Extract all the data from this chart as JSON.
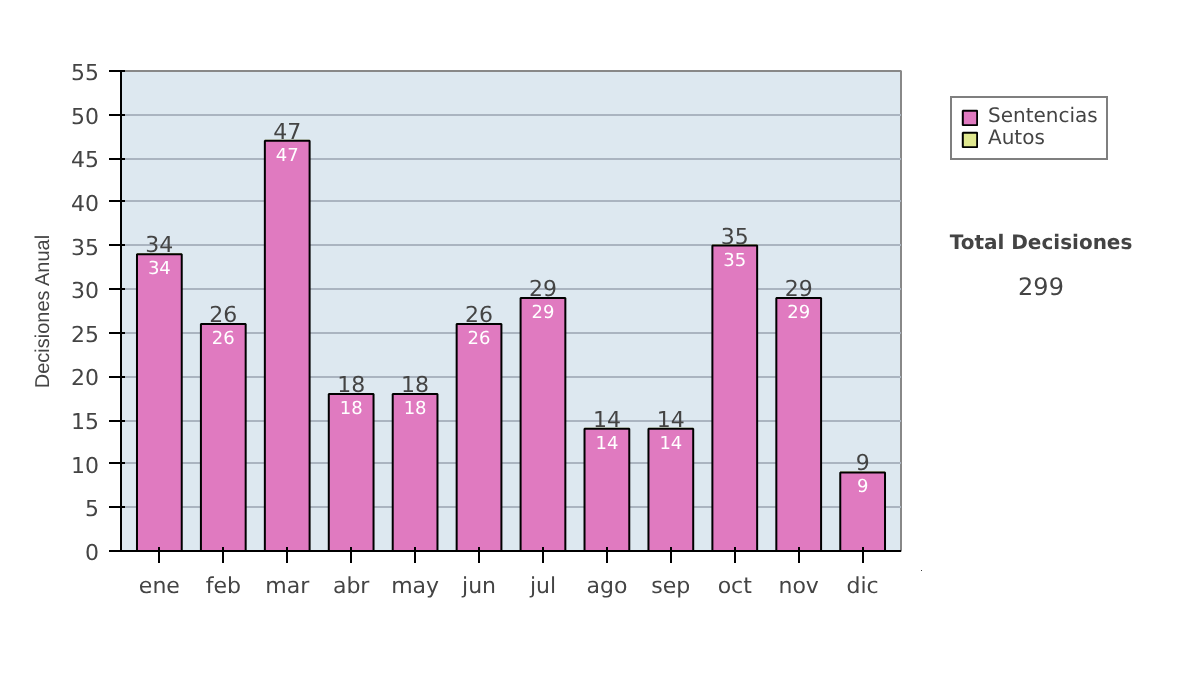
{
  "chart_data": {
    "type": "bar",
    "stacked": true,
    "ylabel": "Decisiones Anual",
    "categories": [
      "ene",
      "feb",
      "mar",
      "abr",
      "may",
      "jun",
      "jul",
      "ago",
      "sep",
      "oct",
      "nov",
      "dic"
    ],
    "series": [
      {
        "name": "Sentencias",
        "color": "#e07ac0",
        "values": [
          34,
          26,
          47,
          18,
          18,
          26,
          29,
          14,
          14,
          35,
          29,
          9
        ],
        "value_labels": [
          "34",
          "26",
          "47",
          "18",
          "18",
          "26",
          "29",
          "14",
          "14",
          "35",
          "29",
          "9"
        ]
      },
      {
        "name": "Autos",
        "color": "#e0e890",
        "values": [
          0,
          0,
          0,
          0,
          0,
          0,
          0,
          0,
          0,
          0,
          0,
          0
        ]
      }
    ],
    "totals": [
      "34",
      "26",
      "47",
      "18",
      "18",
      "26",
      "29",
      "14",
      "14",
      "35",
      "29",
      "9"
    ],
    "ylim": [
      0,
      55
    ],
    "yticks": [
      0,
      5,
      10,
      15,
      20,
      25,
      30,
      35,
      40,
      45,
      50,
      55
    ],
    "grid": "y",
    "legend": "right",
    "annotations": [
      "Total Decisiones",
      "299"
    ]
  }
}
